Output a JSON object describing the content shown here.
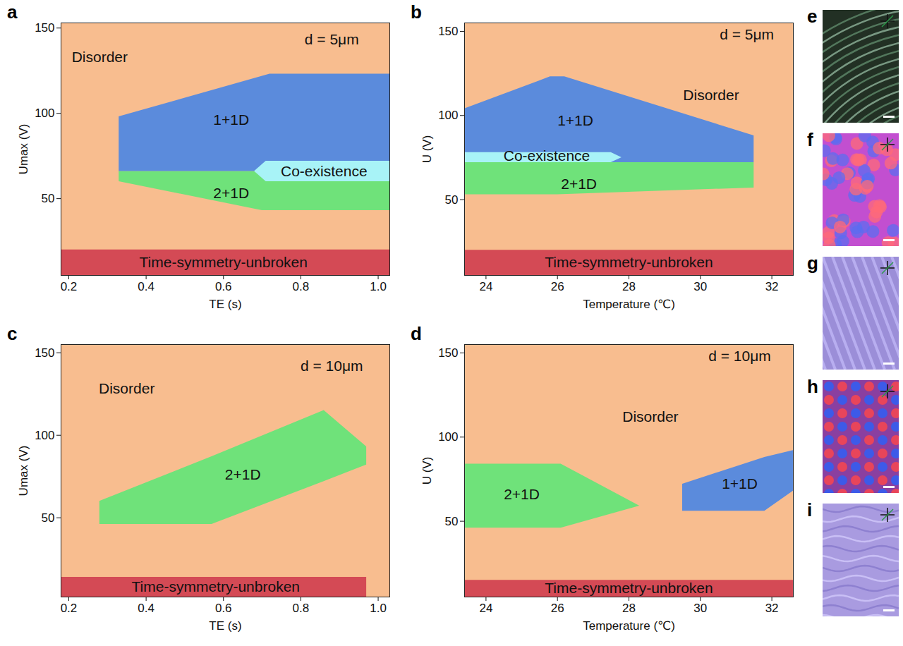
{
  "chart_data": [
    {
      "panel": "a",
      "type": "area",
      "xlabel": "TE (s)",
      "ylabel": "Umax (V)",
      "xlim": [
        0.18,
        1.03
      ],
      "ylim": [
        5,
        153
      ],
      "xticks": [
        0.2,
        0.4,
        0.6,
        0.8,
        {
          "value": 1,
          "label": "1.0"
        }
      ],
      "yticks": [
        50,
        100,
        150
      ],
      "regions": [
        {
          "label": "Disorder",
          "color": "#f8bd8f",
          "x": [
            0.18,
            1.03
          ],
          "y_low": [
            5,
            5
          ],
          "y_high": [
            153,
            153
          ],
          "label_x": 0.28,
          "label_y": 133
        },
        {
          "label": "2+1D",
          "color": "#6fe27a",
          "x": [
            0.33,
            0.7,
            1.03
          ],
          "y_low": [
            60,
            43,
            43
          ],
          "y_high": [
            66,
            66,
            66
          ],
          "label_x": 0.62,
          "label_y": 53
        },
        {
          "label": "1+1D",
          "color": "#5b8bdc",
          "x": [
            0.33,
            0.72,
            1.03
          ],
          "y_low": [
            66,
            66,
            66
          ],
          "y_high": [
            98,
            123,
            123
          ],
          "label_x": 0.62,
          "label_y": 96
        },
        {
          "label": "Co-existence",
          "color": "#a8f3f7",
          "x": [
            0.68,
            0.71,
            1.03
          ],
          "y_low": [
            66,
            60,
            60
          ],
          "y_high": [
            66,
            72,
            72
          ],
          "label_x": 0.86,
          "label_y": 66
        },
        {
          "label": "Time-symmetry-unbroken",
          "color": "#d44a55",
          "x": [
            0.18,
            1.03
          ],
          "y_low": [
            5,
            5
          ],
          "y_high": [
            20,
            20
          ],
          "label_x": 0.6,
          "label_y": 12.5
        }
      ],
      "annotations": [
        {
          "text": "d = 5μm",
          "x": 0.88,
          "y": 143
        }
      ]
    },
    {
      "panel": "b",
      "type": "area",
      "xlabel": "Temperature (℃)",
      "ylabel": "U (V)",
      "xlim": [
        23.4,
        32.6
      ],
      "ylim": [
        5,
        155
      ],
      "xticks": [
        24,
        26,
        28,
        30,
        32
      ],
      "yticks": [
        50,
        100,
        150
      ],
      "regions": [
        {
          "label": "Disorder",
          "color": "#f8bd8f",
          "x": [
            23.4,
            32.6
          ],
          "y_low": [
            5,
            5
          ],
          "y_high": [
            155,
            155
          ],
          "label_x": 30.3,
          "label_y": 112
        },
        {
          "label": "2+1D",
          "color": "#6fe27a",
          "x": [
            23.4,
            26,
            31.5
          ],
          "y_low": [
            53,
            53,
            57
          ],
          "y_high": [
            72,
            72,
            72
          ],
          "label_x": 26.6,
          "label_y": 59
        },
        {
          "label": "1+1D",
          "color": "#5b8bdc",
          "x": [
            23.4,
            25.8,
            26.2,
            31.5
          ],
          "y_low": [
            72,
            72,
            72,
            72
          ],
          "y_high": [
            104,
            123,
            123,
            88
          ],
          "label_x": 26.5,
          "label_y": 97
        },
        {
          "label": "Co-existence",
          "color": "#a8f3f7",
          "x": [
            23.4,
            27.5,
            27.8
          ],
          "y_low": [
            72,
            72,
            75
          ],
          "y_high": [
            78,
            78,
            75
          ],
          "label_x": 25.7,
          "label_y": 76
        },
        {
          "label": "Time-symmetry-unbroken",
          "color": "#d44a55",
          "x": [
            23.4,
            32.6
          ],
          "y_low": [
            5,
            5
          ],
          "y_high": [
            20,
            20
          ],
          "label_x": 28,
          "label_y": 12.5
        }
      ],
      "annotations": [
        {
          "text": "d = 5μm",
          "x": 31.3,
          "y": 148
        }
      ]
    },
    {
      "panel": "c",
      "type": "area",
      "xlabel": "TE (s)",
      "ylabel": "Umax (V)",
      "xlim": [
        0.18,
        1.03
      ],
      "ylim": [
        2,
        155
      ],
      "xticks": [
        0.2,
        0.4,
        0.6,
        0.8,
        {
          "value": 1,
          "label": "1.0"
        }
      ],
      "yticks": [
        50,
        100,
        150
      ],
      "regions": [
        {
          "label": "Disorder",
          "color": "#f8bd8f",
          "x": [
            0.18,
            1.03
          ],
          "y_low": [
            2,
            2
          ],
          "y_high": [
            155,
            155
          ],
          "label_x": 0.35,
          "label_y": 128
        },
        {
          "label": "2+1D",
          "color": "#6fe27a",
          "x": [
            0.28,
            0.57,
            0.86,
            0.97
          ],
          "y_low": [
            46,
            46,
            72,
            82
          ],
          "y_high": [
            60,
            87,
            115,
            93
          ],
          "label_x": 0.65,
          "label_y": 76
        },
        {
          "label": "Time-symmetry-unbroken",
          "color": "#d44a55",
          "x": [
            0.18,
            0.97
          ],
          "y_low": [
            2,
            2
          ],
          "y_high": [
            14,
            14
          ],
          "label_x": 0.58,
          "label_y": 8
        }
      ],
      "annotations": [
        {
          "text": "d = 10μm",
          "x": 0.88,
          "y": 142
        }
      ]
    },
    {
      "panel": "d",
      "type": "area",
      "xlabel": "Temperature (℃)",
      "ylabel": "U (V)",
      "xlim": [
        23.4,
        32.6
      ],
      "ylim": [
        5,
        155
      ],
      "xticks": [
        24,
        26,
        28,
        30,
        32
      ],
      "yticks": [
        50,
        100,
        150
      ],
      "regions": [
        {
          "label": "Disorder",
          "color": "#f8bd8f",
          "x": [
            23.4,
            32.6
          ],
          "y_low": [
            5,
            5
          ],
          "y_high": [
            155,
            155
          ],
          "label_x": 28.6,
          "label_y": 112
        },
        {
          "label": "2+1D",
          "color": "#6fe27a",
          "x": [
            23.4,
            26.1,
            28.3
          ],
          "y_low": [
            46,
            46,
            59
          ],
          "y_high": [
            84,
            84,
            59
          ],
          "label_x": 25,
          "label_y": 66
        },
        {
          "label": "1+1D",
          "color": "#5b8bdc",
          "x": [
            29.5,
            31.8,
            32.6
          ],
          "y_low": [
            56,
            56,
            68
          ],
          "y_high": [
            72,
            88,
            92
          ],
          "label_x": 31.1,
          "label_y": 72
        },
        {
          "label": "Time-symmetry-unbroken",
          "color": "#d44a55",
          "x": [
            23.4,
            32.6
          ],
          "y_low": [
            5,
            5
          ],
          "y_high": [
            15,
            15
          ],
          "label_x": 28,
          "label_y": 10
        }
      ],
      "annotations": [
        {
          "text": "d = 10μm",
          "x": 31.1,
          "y": 148
        }
      ]
    }
  ],
  "image_panels": [
    {
      "label": "e"
    },
    {
      "label": "f"
    },
    {
      "label": "g"
    },
    {
      "label": "h"
    },
    {
      "label": "i"
    }
  ]
}
